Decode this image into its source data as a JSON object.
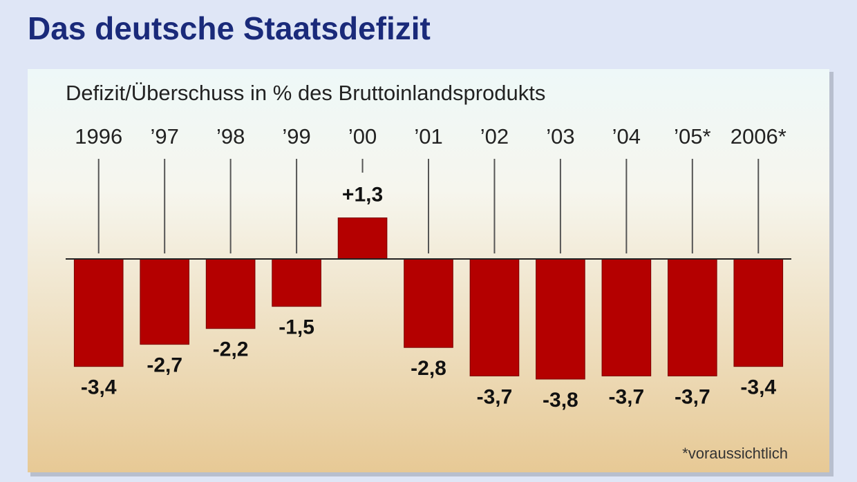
{
  "chart_data": {
    "type": "bar",
    "title": "Das deutsche Staatsdefizit",
    "subtitle": "Defizit/Überschuss in % des Bruttoinlandsprodukts",
    "categories": [
      "1996",
      "’97",
      "’98",
      "’99",
      "’00",
      "’01",
      "’02",
      "’03",
      "’04",
      "’05*",
      "2006*"
    ],
    "values": [
      -3.4,
      -2.7,
      -2.2,
      -1.5,
      1.3,
      -2.8,
      -3.7,
      -3.8,
      -3.7,
      -3.7,
      -3.4
    ],
    "value_labels": [
      "-3,4",
      "-2,7",
      "-2,2",
      "-1,5",
      "+1,3",
      "-2,8",
      "-3,7",
      "-3,8",
      "-3,7",
      "-3,7",
      "-3,4"
    ],
    "color": "#b40000",
    "footnote": "*voraussichtlich"
  }
}
